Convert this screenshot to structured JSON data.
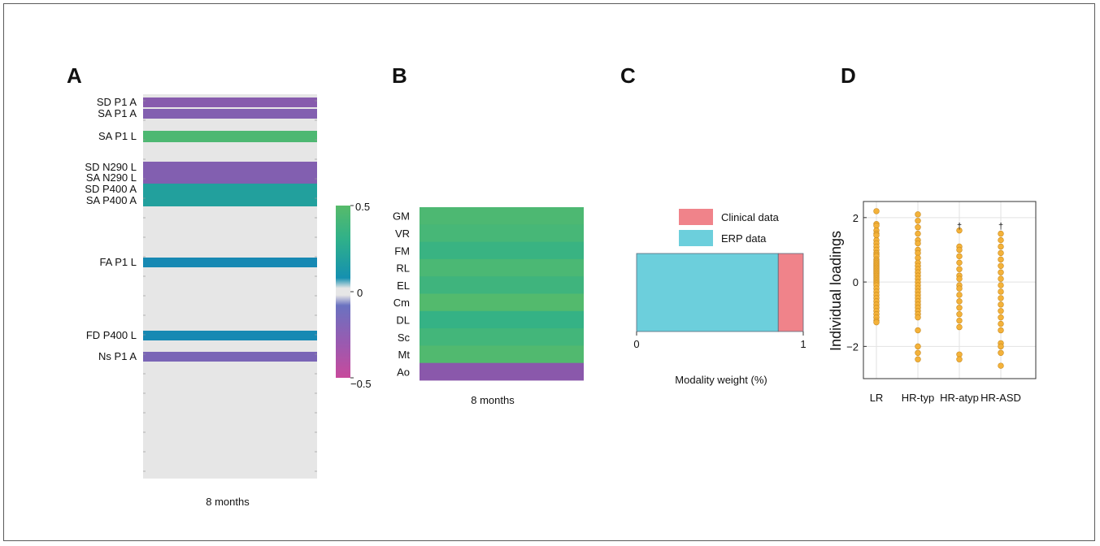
{
  "panels": {
    "a": "A",
    "b": "B",
    "c": "C",
    "d": "D"
  },
  "colors": {
    "purple": "#8258ab",
    "green": "#4cba6e",
    "teal": "#1aa89a",
    "blue": "#1a80b8",
    "lightblue": "#4f7fc1",
    "background": "#e6e6e6",
    "erp": "#6ccfdc",
    "clinical": "#f0838a",
    "dots": "#f4b23a"
  },
  "chart_data": [
    {
      "type": "heatmap",
      "panel": "A",
      "xlabel": "8 months",
      "rows": [
        {
          "label": "SD P1 A",
          "value": -0.18
        },
        {
          "label": "SA P1 A",
          "value": -0.15
        },
        {
          "label": "SA P1 L",
          "value": 0.45
        },
        {
          "label": "SD N290 L",
          "value": -0.15
        },
        {
          "label": "SA N290 L",
          "value": -0.15
        },
        {
          "label": "SD P400 A",
          "value": 0.2
        },
        {
          "label": "SA P400 A",
          "value": 0.2
        },
        {
          "label": "FA P1 L",
          "value": 0.06
        },
        {
          "label": "FD P400 L",
          "value": 0.06
        },
        {
          "label": "Ns P1 A",
          "value": -0.1
        }
      ]
    },
    {
      "type": "heatmap",
      "panel": "B",
      "xlabel": "8 months",
      "rows": [
        {
          "label": "GM",
          "value": 0.45
        },
        {
          "label": "VR",
          "value": 0.42
        },
        {
          "label": "FM",
          "value": 0.35
        },
        {
          "label": "RL",
          "value": 0.44
        },
        {
          "label": "EL",
          "value": 0.38
        },
        {
          "label": "Cm",
          "value": 0.48
        },
        {
          "label": "DL",
          "value": 0.33
        },
        {
          "label": "Sc",
          "value": 0.4
        },
        {
          "label": "Mt",
          "value": 0.47
        },
        {
          "label": "Ao",
          "value": -0.2
        }
      ],
      "colorbar": {
        "ticks": [
          "0.5",
          "0",
          "−0.5"
        ],
        "range": [
          -0.5,
          0.5
        ]
      }
    },
    {
      "type": "bar",
      "panel": "C",
      "orientation": "horizontal-stacked",
      "xlabel": "Modality weight (%)",
      "xticks": [
        "0",
        "1"
      ],
      "xlim": [
        0,
        1
      ],
      "series": [
        {
          "name": "ERP data",
          "value": 0.85
        },
        {
          "name": "Clinical data",
          "value": 0.15
        }
      ],
      "legend": [
        "Clinical data",
        "ERP data"
      ]
    },
    {
      "type": "scatter",
      "panel": "D",
      "ylabel": "Individual loadings",
      "categories": [
        "LR",
        "HR-typ",
        "HR-atyp",
        "HR-ASD"
      ],
      "yticks": [
        "2",
        "0",
        "−2"
      ],
      "ylim": [
        -3,
        2.5
      ],
      "annotations": [
        "†",
        "†"
      ],
      "series": [
        {
          "name": "LR",
          "values": [
            2.2,
            1.8,
            1.75,
            1.6,
            1.5,
            1.45,
            1.3,
            1.2,
            1.1,
            1.0,
            0.9,
            0.85,
            0.8,
            0.7,
            0.65,
            0.6,
            0.55,
            0.5,
            0.45,
            0.4,
            0.35,
            0.3,
            0.25,
            0.2,
            0.15,
            0.1,
            0.05,
            0.0,
            -0.05,
            -0.1,
            -0.2,
            -0.3,
            -0.4,
            -0.5,
            -0.6,
            -0.7,
            -0.8,
            -0.9,
            -1.0,
            -1.1,
            -1.2,
            -1.25
          ]
        },
        {
          "name": "HR-typ",
          "values": [
            2.1,
            1.9,
            1.7,
            1.5,
            1.3,
            1.2,
            1.0,
            0.9,
            0.75,
            0.6,
            0.5,
            0.4,
            0.3,
            0.2,
            0.1,
            0.0,
            -0.1,
            -0.2,
            -0.3,
            -0.4,
            -0.5,
            -0.6,
            -0.7,
            -0.8,
            -0.9,
            -1.0,
            -1.1,
            -1.5,
            -2.0,
            -2.2,
            -2.4
          ]
        },
        {
          "name": "HR-atyp",
          "values": [
            1.6,
            1.1,
            1.0,
            0.8,
            0.6,
            0.4,
            0.2,
            0.1,
            -0.1,
            -0.2,
            -0.4,
            -0.6,
            -0.8,
            -1.0,
            -1.2,
            -1.4,
            -2.25,
            -2.4
          ]
        },
        {
          "name": "HR-ASD",
          "values": [
            1.5,
            1.3,
            1.1,
            0.9,
            0.7,
            0.5,
            0.3,
            0.1,
            -0.1,
            -0.3,
            -0.5,
            -0.7,
            -0.9,
            -1.1,
            -1.3,
            -1.5,
            -1.9,
            -2.0,
            -2.2,
            -2.6
          ]
        }
      ]
    }
  ]
}
